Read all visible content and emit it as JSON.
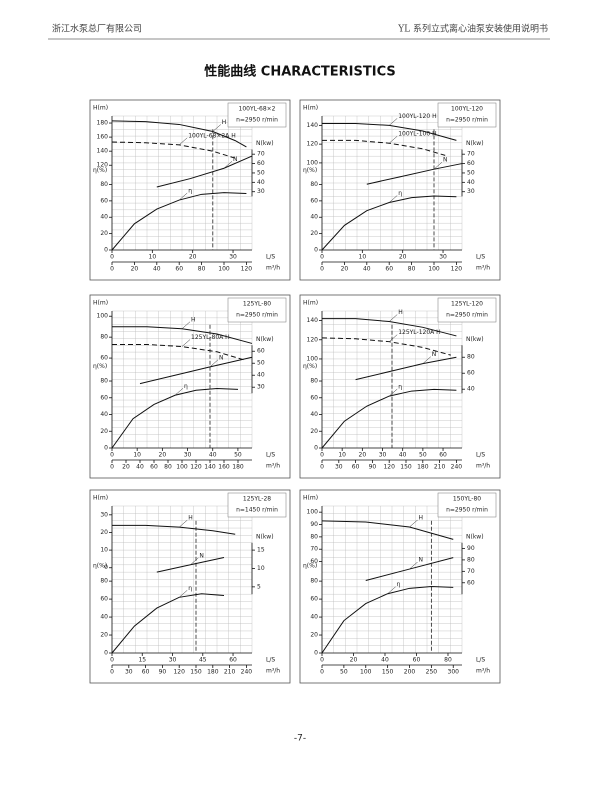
{
  "header": {
    "company": "浙江水泵总厂有限公司",
    "manual": "YL 系列立式离心油泵安装使用说明书"
  },
  "title": "性能曲线  CHARACTERISTICS",
  "footer": "-7-",
  "axis_names": {
    "head": "H(m)",
    "power": "N(kw)",
    "efficiency": "η(%)",
    "flow_ls": "L/S",
    "flow_m3h": "m³/h"
  },
  "panels": [
    {
      "model": "100YL-68×2",
      "speed": "n=2950 r/min",
      "xlim": [
        0,
        125
      ],
      "ls_xlim": [
        0,
        34.7
      ],
      "ls_ticks": [
        0,
        10,
        20,
        30
      ],
      "m3h_ticks": [
        0,
        20,
        40,
        60,
        80,
        100,
        120
      ],
      "h_ylim": [
        110,
        190
      ],
      "h_ticks": [
        120,
        140,
        160,
        180
      ],
      "n_ylim": [
        25,
        75
      ],
      "n_ticks": [
        30,
        40,
        50,
        60,
        70
      ],
      "eta_ylim": [
        0,
        90
      ],
      "eta_ticks": [
        0,
        20,
        40,
        60,
        80
      ],
      "rated_flow": 90,
      "series": [
        {
          "name": "H",
          "axis": "h",
          "dash": false,
          "x": [
            0,
            30,
            60,
            90,
            110,
            120
          ],
          "values": [
            183,
            182,
            178,
            168,
            155,
            146
          ]
        },
        {
          "name": "100YL-68×2A H",
          "axis": "h",
          "dash": true,
          "x": [
            0,
            30,
            60,
            90,
            110
          ],
          "values": [
            153,
            152,
            149,
            140,
            130
          ]
        },
        {
          "name": "N",
          "axis": "n",
          "dash": false,
          "x": [
            40,
            70,
            100,
            125
          ],
          "values": [
            35,
            44,
            55,
            68
          ]
        },
        {
          "name": "η",
          "axis": "eta",
          "dash": false,
          "x": [
            0,
            20,
            40,
            60,
            80,
            100,
            120
          ],
          "values": [
            0,
            32,
            50,
            61,
            68,
            70,
            69
          ]
        }
      ]
    },
    {
      "model": "100YL-120",
      "speed": "n=2950 r/min",
      "xlim": [
        0,
        125
      ],
      "ls_xlim": [
        0,
        34.7
      ],
      "ls_ticks": [
        0,
        10,
        20,
        30
      ],
      "m3h_ticks": [
        0,
        20,
        40,
        60,
        80,
        100,
        120
      ],
      "h_ylim": [
        90,
        150
      ],
      "h_ticks": [
        100,
        120,
        140
      ],
      "n_ylim": [
        25,
        75
      ],
      "n_ticks": [
        30,
        40,
        50,
        60,
        70
      ],
      "eta_ylim": [
        0,
        90
      ],
      "eta_ticks": [
        0,
        20,
        40,
        60,
        80
      ],
      "rated_flow": 100,
      "series": [
        {
          "name": "100YL-120 H",
          "axis": "h",
          "dash": false,
          "x": [
            0,
            30,
            60,
            90,
            120
          ],
          "values": [
            142,
            142,
            140,
            134,
            124
          ]
        },
        {
          "name": "100YL-100 H",
          "axis": "h",
          "dash": true,
          "x": [
            0,
            30,
            60,
            90,
            110
          ],
          "values": [
            124,
            124,
            121,
            115,
            108
          ]
        },
        {
          "name": "N",
          "axis": "n",
          "dash": false,
          "x": [
            40,
            70,
            100,
            125
          ],
          "values": [
            38,
            46,
            54,
            60
          ]
        },
        {
          "name": "η",
          "axis": "eta",
          "dash": false,
          "x": [
            0,
            20,
            40,
            60,
            80,
            100,
            120
          ],
          "values": [
            0,
            30,
            48,
            58,
            64,
            66,
            65
          ]
        }
      ]
    },
    {
      "model": "125YL-80",
      "speed": "n=2950 r/min",
      "xlim": [
        0,
        200
      ],
      "ls_xlim": [
        0,
        55.6
      ],
      "ls_ticks": [
        0,
        10,
        20,
        30,
        40,
        50
      ],
      "m3h_ticks": [
        0,
        20,
        40,
        60,
        80,
        100,
        120,
        140,
        160,
        180
      ],
      "h_ylim": [
        50,
        105
      ],
      "h_ticks": [
        60,
        80,
        100
      ],
      "n_ylim": [
        25,
        65
      ],
      "n_ticks": [
        30,
        40,
        50,
        60
      ],
      "eta_ylim": [
        0,
        90
      ],
      "eta_ticks": [
        0,
        20,
        40,
        60,
        80
      ],
      "rated_flow": 140,
      "series": [
        {
          "name": "H",
          "axis": "h",
          "dash": false,
          "x": [
            0,
            50,
            100,
            150,
            200
          ],
          "values": [
            90,
            90,
            88,
            83,
            74
          ]
        },
        {
          "name": "125YL-80A H",
          "axis": "h",
          "dash": true,
          "x": [
            0,
            50,
            100,
            150,
            190
          ],
          "values": [
            73,
            73,
            71,
            66,
            58
          ]
        },
        {
          "name": "N",
          "axis": "n",
          "dash": false,
          "x": [
            40,
            90,
            140,
            200
          ],
          "values": [
            33,
            40,
            47,
            55
          ]
        },
        {
          "name": "η",
          "axis": "eta",
          "dash": false,
          "x": [
            0,
            30,
            60,
            90,
            120,
            150,
            180
          ],
          "values": [
            0,
            35,
            52,
            63,
            69,
            71,
            70
          ]
        }
      ]
    },
    {
      "model": "125YL-120",
      "speed": "n=2950 r/min",
      "xlim": [
        0,
        250
      ],
      "ls_xlim": [
        0,
        69.4
      ],
      "ls_ticks": [
        0,
        10,
        20,
        30,
        40,
        50,
        60
      ],
      "m3h_ticks": [
        0,
        30,
        60,
        90,
        120,
        150,
        180,
        210,
        240
      ],
      "h_ylim": [
        90,
        150
      ],
      "h_ticks": [
        100,
        120,
        140
      ],
      "n_ylim": [
        35,
        95
      ],
      "n_ticks": [
        40,
        60,
        80
      ],
      "eta_ylim": [
        0,
        90
      ],
      "eta_ticks": [
        0,
        20,
        40,
        60,
        80
      ],
      "rated_flow": 125,
      "series": [
        {
          "name": "H",
          "axis": "h",
          "dash": false,
          "x": [
            0,
            60,
            120,
            180,
            240
          ],
          "values": [
            142,
            142,
            139,
            133,
            124
          ]
        },
        {
          "name": "125YL-120A H",
          "axis": "h",
          "dash": true,
          "x": [
            0,
            60,
            120,
            180,
            230
          ],
          "values": [
            122,
            121,
            118,
            112,
            104
          ]
        },
        {
          "name": "N",
          "axis": "n",
          "dash": false,
          "x": [
            60,
            120,
            180,
            240
          ],
          "values": [
            52,
            62,
            72,
            80
          ]
        },
        {
          "name": "η",
          "axis": "eta",
          "dash": false,
          "x": [
            0,
            40,
            80,
            120,
            160,
            200,
            240
          ],
          "values": [
            0,
            32,
            50,
            62,
            68,
            70,
            69
          ]
        }
      ]
    },
    {
      "model": "125YL-28",
      "speed": "n=1450 r/min",
      "xlim": [
        0,
        250
      ],
      "ls_xlim": [
        0,
        69.4
      ],
      "ls_ticks": [
        0,
        15,
        30,
        45,
        60
      ],
      "m3h_ticks": [
        0,
        30,
        60,
        90,
        120,
        150,
        180,
        210,
        240
      ],
      "h_ylim": [
        0,
        35
      ],
      "h_ticks": [
        0,
        10,
        20,
        30
      ],
      "n_ylim": [
        3,
        17
      ],
      "n_ticks": [
        5,
        10,
        15
      ],
      "eta_ylim": [
        0,
        90
      ],
      "eta_ticks": [
        0,
        20,
        40,
        60,
        80
      ],
      "rated_flow": 150,
      "series": [
        {
          "name": "H",
          "axis": "h",
          "dash": false,
          "x": [
            0,
            60,
            120,
            180,
            220
          ],
          "values": [
            24,
            24,
            23,
            21,
            19
          ]
        },
        {
          "name": "N",
          "axis": "n",
          "dash": false,
          "x": [
            80,
            140,
            200
          ],
          "values": [
            9,
            11,
            13
          ]
        },
        {
          "name": "η",
          "axis": "eta",
          "dash": false,
          "x": [
            0,
            40,
            80,
            120,
            160,
            200
          ],
          "values": [
            0,
            30,
            50,
            62,
            66,
            64
          ]
        }
      ]
    },
    {
      "model": "150YL-80",
      "speed": "n=2950 r/min",
      "xlim": [
        0,
        320
      ],
      "ls_xlim": [
        0,
        88.9
      ],
      "ls_ticks": [
        0,
        20,
        40,
        60,
        80
      ],
      "m3h_ticks": [
        0,
        50,
        100,
        150,
        200,
        250,
        300
      ],
      "h_ylim": [
        55,
        105
      ],
      "h_ticks": [
        60,
        70,
        80,
        90,
        100
      ],
      "n_ylim": [
        50,
        95
      ],
      "n_ticks": [
        60,
        70,
        80,
        90
      ],
      "eta_ylim": [
        0,
        90
      ],
      "eta_ticks": [
        0,
        20,
        40,
        60,
        80
      ],
      "rated_flow": 250,
      "series": [
        {
          "name": "H",
          "axis": "h",
          "dash": false,
          "x": [
            0,
            100,
            200,
            300
          ],
          "values": [
            93,
            92,
            88,
            78
          ]
        },
        {
          "name": "N",
          "axis": "n",
          "dash": false,
          "x": [
            100,
            200,
            300
          ],
          "values": [
            62,
            72,
            82
          ]
        },
        {
          "name": "η",
          "axis": "eta",
          "dash": false,
          "x": [
            0,
            50,
            100,
            150,
            200,
            250,
            300
          ],
          "values": [
            0,
            36,
            55,
            66,
            72,
            74,
            73
          ]
        }
      ]
    }
  ]
}
